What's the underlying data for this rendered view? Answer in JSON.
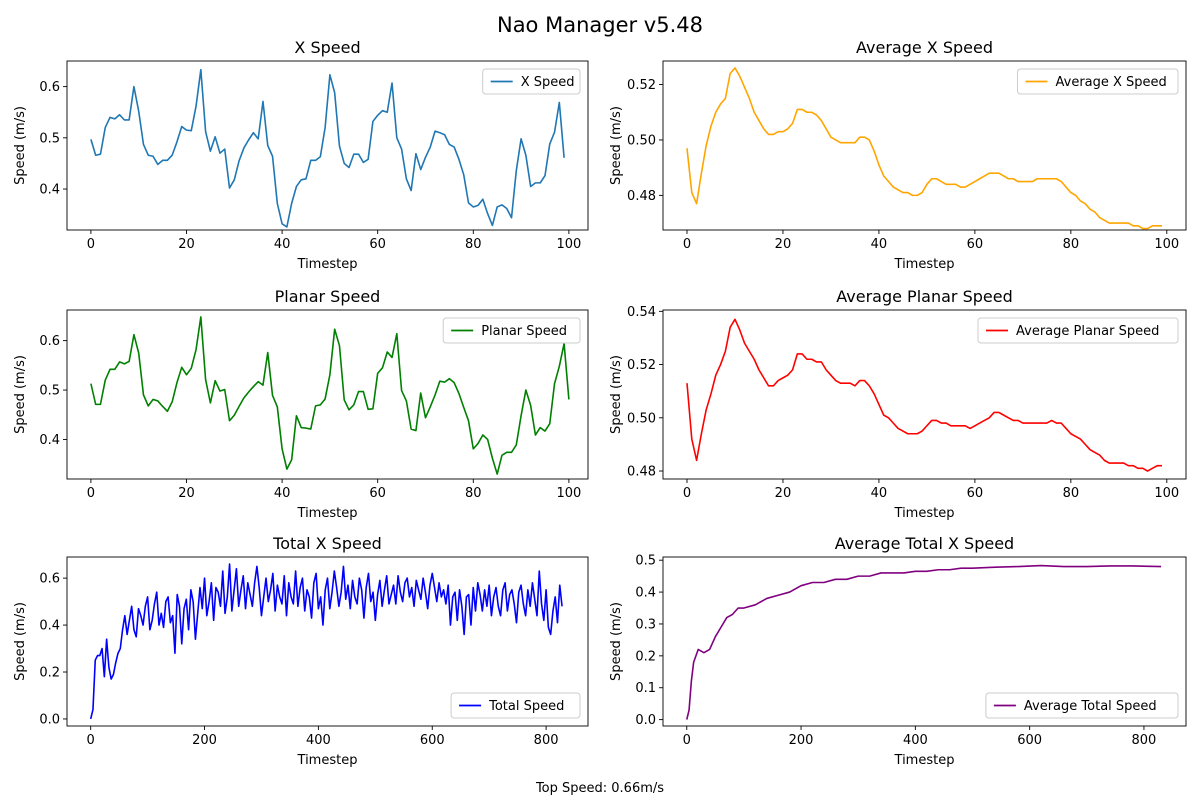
{
  "figure": {
    "suptitle": "Nao Manager v5.48",
    "footer": "Top Speed: 0.66m/s"
  },
  "chart_data": [
    {
      "id": "x-speed",
      "type": "line",
      "title": "X Speed",
      "xlabel": "Timestep",
      "ylabel": "Speed (m/s)",
      "xlim": [
        -5,
        104
      ],
      "ylim": [
        0.32,
        0.65
      ],
      "xticks": [
        0,
        20,
        40,
        60,
        80,
        100
      ],
      "yticks": [
        0.4,
        0.5,
        0.6
      ],
      "ytick_decimals": 1,
      "legend": "top-right",
      "grid": false,
      "series": [
        {
          "name": "X Speed",
          "color": "#1f77b4",
          "x_start": 0,
          "x_step": 1,
          "values": [
            0.497,
            0.466,
            0.468,
            0.52,
            0.54,
            0.537,
            0.545,
            0.535,
            0.535,
            0.6,
            0.552,
            0.487,
            0.466,
            0.464,
            0.448,
            0.456,
            0.456,
            0.466,
            0.492,
            0.522,
            0.515,
            0.514,
            0.562,
            0.633,
            0.512,
            0.474,
            0.502,
            0.47,
            0.478,
            0.402,
            0.418,
            0.455,
            0.48,
            0.496,
            0.51,
            0.498,
            0.571,
            0.485,
            0.464,
            0.372,
            0.332,
            0.326,
            0.372,
            0.405,
            0.418,
            0.42,
            0.456,
            0.456,
            0.463,
            0.52,
            0.623,
            0.588,
            0.484,
            0.45,
            0.442,
            0.468,
            0.468,
            0.452,
            0.458,
            0.532,
            0.544,
            0.553,
            0.55,
            0.607,
            0.5,
            0.478,
            0.42,
            0.397,
            0.469,
            0.438,
            0.462,
            0.482,
            0.513,
            0.51,
            0.506,
            0.487,
            0.482,
            0.458,
            0.428,
            0.373,
            0.365,
            0.368,
            0.38,
            0.352,
            0.329,
            0.365,
            0.369,
            0.362,
            0.344,
            0.436,
            0.498,
            0.466,
            0.405,
            0.412,
            0.412,
            0.426,
            0.488,
            0.511,
            0.569,
            0.461
          ]
        }
      ]
    },
    {
      "id": "avg-x-speed",
      "type": "line",
      "title": "Average X Speed",
      "xlabel": "Timestep",
      "ylabel": "Speed (m/s)",
      "xlim": [
        -5,
        104
      ],
      "ylim": [
        0.4675,
        0.5285
      ],
      "xticks": [
        0,
        20,
        40,
        60,
        80,
        100
      ],
      "yticks": [
        0.48,
        0.5,
        0.52
      ],
      "ytick_decimals": 2,
      "legend": "top-right",
      "grid": false,
      "series": [
        {
          "name": "Average X Speed",
          "color": "#ffa500",
          "x_start": 0,
          "x_step": 1,
          "values": [
            0.497,
            0.481,
            0.477,
            0.488,
            0.498,
            0.505,
            0.51,
            0.513,
            0.515,
            0.524,
            0.526,
            0.523,
            0.519,
            0.515,
            0.51,
            0.507,
            0.504,
            0.502,
            0.502,
            0.503,
            0.503,
            0.504,
            0.506,
            0.511,
            0.511,
            0.51,
            0.51,
            0.509,
            0.507,
            0.504,
            0.501,
            0.5,
            0.499,
            0.499,
            0.499,
            0.499,
            0.501,
            0.501,
            0.5,
            0.496,
            0.491,
            0.487,
            0.485,
            0.483,
            0.482,
            0.481,
            0.481,
            0.48,
            0.48,
            0.481,
            0.484,
            0.486,
            0.486,
            0.485,
            0.484,
            0.484,
            0.484,
            0.483,
            0.483,
            0.484,
            0.485,
            0.486,
            0.487,
            0.488,
            0.488,
            0.488,
            0.487,
            0.486,
            0.486,
            0.485,
            0.485,
            0.485,
            0.485,
            0.486,
            0.486,
            0.486,
            0.486,
            0.486,
            0.485,
            0.483,
            0.481,
            0.48,
            0.478,
            0.477,
            0.475,
            0.474,
            0.472,
            0.471,
            0.47,
            0.47,
            0.47,
            0.47,
            0.47,
            0.469,
            0.469,
            0.468,
            0.468,
            0.469,
            0.469,
            0.469
          ]
        }
      ]
    },
    {
      "id": "planar-speed",
      "type": "line",
      "title": "Planar Speed",
      "xlabel": "Timestep",
      "ylabel": "Speed (m/s)",
      "xlim": [
        -5,
        104
      ],
      "ylim": [
        0.32,
        0.662
      ],
      "xticks": [
        0,
        20,
        40,
        60,
        80,
        100
      ],
      "yticks": [
        0.4,
        0.5,
        0.6
      ],
      "ytick_decimals": 1,
      "legend": "top-right",
      "grid": false,
      "series": [
        {
          "name": "Planar Speed",
          "color": "#008000",
          "x_start": 0,
          "x_step": 1,
          "values": [
            0.513,
            0.471,
            0.471,
            0.52,
            0.542,
            0.542,
            0.557,
            0.553,
            0.558,
            0.612,
            0.575,
            0.49,
            0.468,
            0.481,
            0.478,
            0.467,
            0.457,
            0.476,
            0.515,
            0.546,
            0.531,
            0.544,
            0.582,
            0.648,
            0.521,
            0.474,
            0.519,
            0.498,
            0.501,
            0.438,
            0.449,
            0.467,
            0.484,
            0.496,
            0.507,
            0.517,
            0.51,
            0.576,
            0.489,
            0.466,
            0.381,
            0.34,
            0.359,
            0.448,
            0.424,
            0.423,
            0.421,
            0.468,
            0.47,
            0.482,
            0.531,
            0.623,
            0.59,
            0.48,
            0.46,
            0.47,
            0.497,
            0.497,
            0.461,
            0.462,
            0.534,
            0.545,
            0.577,
            0.566,
            0.614,
            0.499,
            0.478,
            0.421,
            0.418,
            0.494,
            0.444,
            0.466,
            0.49,
            0.518,
            0.516,
            0.523,
            0.515,
            0.493,
            0.465,
            0.438,
            0.381,
            0.392,
            0.409,
            0.4,
            0.362,
            0.33,
            0.368,
            0.374,
            0.374,
            0.389,
            0.448,
            0.5,
            0.469,
            0.409,
            0.424,
            0.417,
            0.432,
            0.513,
            0.548,
            0.594,
            0.481
          ]
        }
      ]
    },
    {
      "id": "avg-planar-speed",
      "type": "line",
      "title": "Average Planar Speed",
      "xlabel": "Timestep",
      "ylabel": "Speed (m/s)",
      "xlim": [
        -5,
        104
      ],
      "ylim": [
        0.477,
        0.5405
      ],
      "xticks": [
        0,
        20,
        40,
        60,
        80,
        100
      ],
      "yticks": [
        0.48,
        0.5,
        0.52,
        0.54
      ],
      "ytick_decimals": 2,
      "legend": "top-right",
      "grid": false,
      "series": [
        {
          "name": "Average Planar Speed",
          "color": "#ff0000",
          "x_start": 0,
          "x_step": 1,
          "values": [
            0.513,
            0.492,
            0.484,
            0.494,
            0.503,
            0.509,
            0.516,
            0.52,
            0.525,
            0.534,
            0.537,
            0.533,
            0.528,
            0.525,
            0.522,
            0.518,
            0.515,
            0.512,
            0.512,
            0.514,
            0.515,
            0.516,
            0.518,
            0.524,
            0.524,
            0.522,
            0.522,
            0.521,
            0.521,
            0.518,
            0.516,
            0.514,
            0.513,
            0.513,
            0.513,
            0.512,
            0.514,
            0.514,
            0.512,
            0.509,
            0.505,
            0.501,
            0.5,
            0.498,
            0.496,
            0.495,
            0.494,
            0.494,
            0.494,
            0.495,
            0.497,
            0.499,
            0.499,
            0.498,
            0.498,
            0.497,
            0.497,
            0.497,
            0.497,
            0.496,
            0.497,
            0.498,
            0.499,
            0.5,
            0.502,
            0.502,
            0.501,
            0.5,
            0.499,
            0.499,
            0.498,
            0.498,
            0.498,
            0.498,
            0.498,
            0.498,
            0.499,
            0.498,
            0.498,
            0.496,
            0.494,
            0.493,
            0.492,
            0.49,
            0.488,
            0.487,
            0.486,
            0.484,
            0.483,
            0.483,
            0.483,
            0.483,
            0.482,
            0.482,
            0.481,
            0.481,
            0.48,
            0.481,
            0.482,
            0.482
          ]
        }
      ]
    },
    {
      "id": "total-x-speed",
      "type": "line",
      "title": "Total X Speed",
      "xlabel": "Timestep",
      "ylabel": "Speed (m/s)",
      "xlim": [
        -41.6,
        873.6
      ],
      "ylim": [
        -0.03,
        0.69
      ],
      "xticks": [
        0,
        200,
        400,
        600,
        800
      ],
      "yticks": [
        0.0,
        0.2,
        0.4,
        0.6
      ],
      "ytick_decimals": 1,
      "legend": "bottom-right",
      "grid": false,
      "series": [
        {
          "name": "Total Speed",
          "color": "#0000ff",
          "x_start": 0,
          "x_step": 4,
          "values": [
            0.0,
            0.04,
            0.25,
            0.27,
            0.27,
            0.3,
            0.18,
            0.34,
            0.22,
            0.17,
            0.19,
            0.24,
            0.28,
            0.3,
            0.38,
            0.44,
            0.36,
            0.42,
            0.48,
            0.38,
            0.35,
            0.47,
            0.44,
            0.4,
            0.48,
            0.52,
            0.38,
            0.42,
            0.49,
            0.54,
            0.4,
            0.45,
            0.39,
            0.5,
            0.52,
            0.41,
            0.44,
            0.28,
            0.53,
            0.48,
            0.32,
            0.47,
            0.51,
            0.38,
            0.55,
            0.5,
            0.34,
            0.45,
            0.56,
            0.47,
            0.6,
            0.44,
            0.5,
            0.58,
            0.42,
            0.56,
            0.54,
            0.48,
            0.63,
            0.45,
            0.52,
            0.66,
            0.46,
            0.55,
            0.64,
            0.48,
            0.55,
            0.61,
            0.47,
            0.58,
            0.53,
            0.48,
            0.58,
            0.65,
            0.56,
            0.44,
            0.52,
            0.6,
            0.5,
            0.55,
            0.62,
            0.46,
            0.57,
            0.52,
            0.49,
            0.61,
            0.44,
            0.58,
            0.52,
            0.49,
            0.63,
            0.48,
            0.56,
            0.6,
            0.46,
            0.55,
            0.52,
            0.43,
            0.58,
            0.62,
            0.47,
            0.52,
            0.4,
            0.55,
            0.6,
            0.47,
            0.54,
            0.63,
            0.56,
            0.48,
            0.54,
            0.65,
            0.51,
            0.57,
            0.47,
            0.59,
            0.52,
            0.49,
            0.6,
            0.55,
            0.43,
            0.56,
            0.62,
            0.5,
            0.54,
            0.42,
            0.53,
            0.59,
            0.48,
            0.55,
            0.61,
            0.49,
            0.53,
            0.57,
            0.49,
            0.61,
            0.54,
            0.5,
            0.58,
            0.6,
            0.52,
            0.56,
            0.48,
            0.59,
            0.55,
            0.51,
            0.6,
            0.54,
            0.47,
            0.57,
            0.62,
            0.56,
            0.5,
            0.58,
            0.52,
            0.55,
            0.49,
            0.57,
            0.4,
            0.52,
            0.54,
            0.42,
            0.55,
            0.48,
            0.36,
            0.52,
            0.53,
            0.4,
            0.56,
            0.46,
            0.58,
            0.53,
            0.46,
            0.55,
            0.48,
            0.57,
            0.44,
            0.52,
            0.56,
            0.48,
            0.44,
            0.55,
            0.58,
            0.46,
            0.53,
            0.55,
            0.49,
            0.41,
            0.54,
            0.57,
            0.49,
            0.44,
            0.55,
            0.48,
            0.58,
            0.51,
            0.44,
            0.63,
            0.49,
            0.42,
            0.55,
            0.39,
            0.36,
            0.46,
            0.52,
            0.41,
            0.57,
            0.48
          ]
        }
      ]
    },
    {
      "id": "avg-total-x-speed",
      "type": "line",
      "title": "Average Total X Speed",
      "xlabel": "Timestep",
      "ylabel": "Speed (m/s)",
      "xlim": [
        -41.6,
        873.6
      ],
      "ylim": [
        -0.02,
        0.51
      ],
      "xticks": [
        0,
        200,
        400,
        600,
        800
      ],
      "yticks": [
        0.0,
        0.1,
        0.2,
        0.3,
        0.4,
        0.5
      ],
      "ytick_decimals": 1,
      "legend": "bottom-right",
      "grid": false,
      "series": [
        {
          "name": "Average Total Speed",
          "color": "#800080",
          "x": [
            0,
            4,
            8,
            12,
            20,
            30,
            40,
            50,
            60,
            70,
            80,
            90,
            100,
            120,
            140,
            160,
            180,
            200,
            220,
            240,
            260,
            280,
            300,
            320,
            340,
            360,
            380,
            400,
            420,
            440,
            460,
            480,
            500,
            540,
            580,
            620,
            660,
            700,
            740,
            780,
            830
          ],
          "values": [
            0.0,
            0.03,
            0.12,
            0.18,
            0.22,
            0.21,
            0.22,
            0.26,
            0.29,
            0.32,
            0.33,
            0.35,
            0.35,
            0.36,
            0.38,
            0.39,
            0.4,
            0.42,
            0.43,
            0.43,
            0.44,
            0.44,
            0.45,
            0.45,
            0.46,
            0.46,
            0.46,
            0.465,
            0.465,
            0.47,
            0.47,
            0.475,
            0.475,
            0.478,
            0.48,
            0.483,
            0.48,
            0.48,
            0.482,
            0.482,
            0.48
          ]
        }
      ]
    }
  ]
}
